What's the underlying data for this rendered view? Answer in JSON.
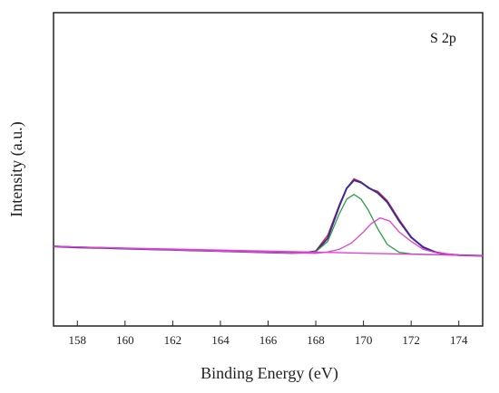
{
  "chart_data": {
    "type": "line",
    "title": "",
    "annotation": "S 2p",
    "xlabel": "Binding Energy (eV)",
    "ylabel": "Intensity (a.u.)",
    "xlim": [
      157,
      175
    ],
    "ylim": [
      0,
      1
    ],
    "x_ticks": [
      158,
      160,
      162,
      164,
      166,
      168,
      170,
      172,
      174
    ],
    "x_tick_labels": [
      "158",
      "160",
      "162",
      "164",
      "166",
      "168",
      "170",
      "172",
      "174"
    ],
    "grid": false,
    "legend": "none",
    "series": [
      {
        "role": "raw-data",
        "color": "#e8282c",
        "x": [
          157,
          158,
          159,
          160,
          161,
          162,
          163,
          164,
          165,
          166,
          167,
          167.5,
          168,
          168.5,
          169,
          169.3,
          169.6,
          169.9,
          170.2,
          170.6,
          171,
          171.5,
          172,
          172.5,
          173,
          173.5,
          174,
          175
        ],
        "y": [
          0.255,
          0.252,
          0.25,
          0.248,
          0.245,
          0.243,
          0.241,
          0.239,
          0.237,
          0.234,
          0.233,
          0.233,
          0.24,
          0.29,
          0.39,
          0.44,
          0.47,
          0.46,
          0.44,
          0.43,
          0.4,
          0.34,
          0.285,
          0.25,
          0.235,
          0.228,
          0.226,
          0.225
        ]
      },
      {
        "role": "envelope",
        "color": "#3b2b9c",
        "x": [
          157,
          158,
          159,
          160,
          161,
          162,
          163,
          164,
          165,
          166,
          167,
          167.5,
          168,
          168.5,
          169,
          169.3,
          169.6,
          169.9,
          170.2,
          170.6,
          171,
          171.5,
          172,
          172.5,
          173,
          173.5,
          174,
          175
        ],
        "y": [
          0.254,
          0.251,
          0.249,
          0.247,
          0.245,
          0.243,
          0.241,
          0.239,
          0.237,
          0.235,
          0.233,
          0.234,
          0.238,
          0.28,
          0.385,
          0.44,
          0.465,
          0.458,
          0.442,
          0.425,
          0.395,
          0.335,
          0.283,
          0.252,
          0.236,
          0.229,
          0.226,
          0.224
        ]
      },
      {
        "role": "component-1",
        "color": "#2e9e45",
        "x": [
          157,
          166,
          167,
          167.5,
          168,
          168.5,
          169,
          169.3,
          169.6,
          169.9,
          170.2,
          170.6,
          171,
          171.5,
          172,
          173,
          175
        ],
        "y": [
          0.254,
          0.235,
          0.233,
          0.234,
          0.237,
          0.27,
          0.36,
          0.405,
          0.42,
          0.405,
          0.37,
          0.31,
          0.26,
          0.235,
          0.23,
          0.228,
          0.224
        ]
      },
      {
        "role": "component-2",
        "color": "#e23fd3",
        "x": [
          157,
          167,
          168,
          168.5,
          169,
          169.5,
          170,
          170.3,
          170.7,
          171.1,
          171.5,
          172,
          172.5,
          173,
          174,
          175
        ],
        "y": [
          0.254,
          0.233,
          0.232,
          0.236,
          0.245,
          0.265,
          0.3,
          0.325,
          0.345,
          0.335,
          0.3,
          0.27,
          0.245,
          0.235,
          0.226,
          0.224
        ]
      },
      {
        "role": "baseline",
        "color": "#e23fd3",
        "x": [
          157,
          175
        ],
        "y": [
          0.254,
          0.224
        ]
      }
    ]
  }
}
